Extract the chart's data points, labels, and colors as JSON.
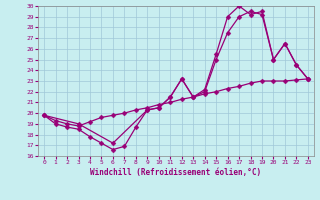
{
  "xlabel": "Windchill (Refroidissement éolien,°C)",
  "background_color": "#c8eef0",
  "grid_color": "#a0c8d8",
  "line_color": "#990077",
  "xlim": [
    -0.5,
    23.5
  ],
  "ylim": [
    16,
    30
  ],
  "xticks": [
    0,
    1,
    2,
    3,
    4,
    5,
    6,
    7,
    8,
    9,
    10,
    11,
    12,
    13,
    14,
    15,
    16,
    17,
    18,
    19,
    20,
    21,
    22,
    23
  ],
  "yticks": [
    16,
    17,
    18,
    19,
    20,
    21,
    22,
    23,
    24,
    25,
    26,
    27,
    28,
    29,
    30
  ],
  "line1_x": [
    0,
    1,
    2,
    3,
    4,
    5,
    6,
    7,
    8,
    9,
    10,
    11,
    12,
    13,
    14,
    15,
    16,
    17,
    18,
    19,
    20,
    21,
    22,
    23
  ],
  "line1_y": [
    19.8,
    19.0,
    18.7,
    18.5,
    17.8,
    17.2,
    16.6,
    16.9,
    18.7,
    20.3,
    20.5,
    21.5,
    23.2,
    21.5,
    22.2,
    25.5,
    29.0,
    30.0,
    29.2,
    29.5,
    25.0,
    26.5,
    24.5,
    23.2
  ],
  "line2_x": [
    0,
    3,
    6,
    9,
    10,
    11,
    12,
    13,
    14,
    15,
    16,
    17,
    18,
    19,
    20,
    21,
    22,
    23
  ],
  "line2_y": [
    19.8,
    19.0,
    17.2,
    20.3,
    20.5,
    21.5,
    23.2,
    21.5,
    22.0,
    25.0,
    27.5,
    29.0,
    29.5,
    29.2,
    25.0,
    26.5,
    24.5,
    23.2
  ],
  "line3_x": [
    0,
    1,
    2,
    3,
    4,
    5,
    6,
    7,
    8,
    9,
    10,
    11,
    12,
    13,
    14,
    15,
    16,
    17,
    18,
    19,
    20,
    21,
    22,
    23
  ],
  "line3_y": [
    19.8,
    19.3,
    19.0,
    18.8,
    19.2,
    19.6,
    19.8,
    20.0,
    20.3,
    20.5,
    20.8,
    21.0,
    21.3,
    21.5,
    21.8,
    22.0,
    22.3,
    22.5,
    22.8,
    23.0,
    23.0,
    23.0,
    23.1,
    23.2
  ]
}
